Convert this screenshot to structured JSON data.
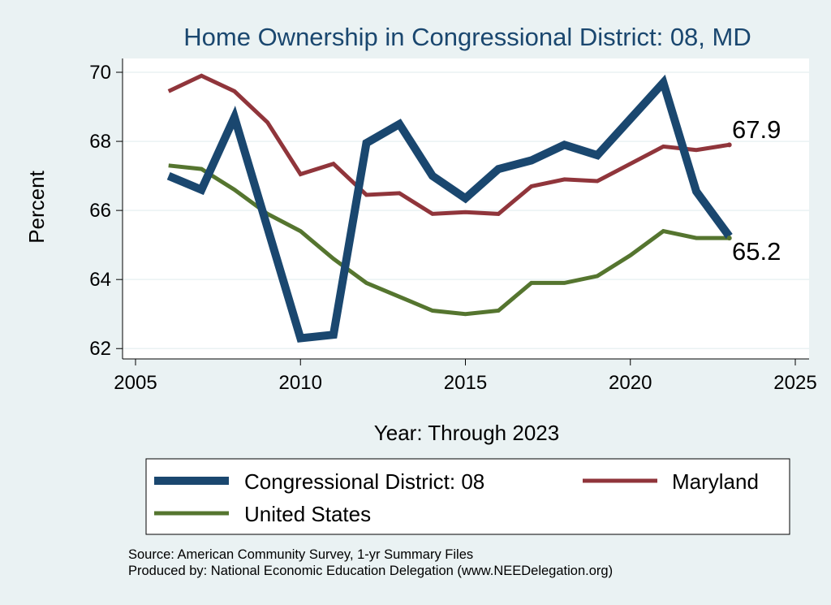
{
  "chart_data": {
    "type": "line",
    "title": "Home Ownership in Congressional District:  08, MD",
    "xlabel": "Year: Through 2023",
    "ylabel": "Percent",
    "xlim": [
      2005,
      2025
    ],
    "ylim": [
      61.7,
      70.4
    ],
    "xticks": [
      2005,
      2010,
      2015,
      2020,
      2025
    ],
    "yticks": [
      62,
      64,
      66,
      68,
      70
    ],
    "grid": true,
    "legend_position": "bottom",
    "series": [
      {
        "name": "Congressional District:  08",
        "color": "#1a476f",
        "x": [
          2006,
          2007,
          2008,
          2009,
          2010,
          2011,
          2012,
          2013,
          2014,
          2015,
          2016,
          2017,
          2018,
          2019,
          2020,
          2021,
          2022,
          2023
        ],
        "values": [
          67.0,
          66.6,
          68.7,
          65.5,
          62.3,
          62.4,
          67.95,
          68.5,
          67.0,
          66.35,
          67.2,
          67.45,
          67.9,
          67.6,
          68.65,
          69.7,
          66.55,
          65.25
        ]
      },
      {
        "name": "Maryland",
        "color": "#90353b",
        "x": [
          2006,
          2007,
          2008,
          2009,
          2010,
          2011,
          2012,
          2013,
          2014,
          2015,
          2016,
          2017,
          2018,
          2019,
          2020,
          2021,
          2022,
          2023
        ],
        "values": [
          69.45,
          69.9,
          69.45,
          68.55,
          67.05,
          67.35,
          66.45,
          66.5,
          65.9,
          65.95,
          65.9,
          66.7,
          66.9,
          66.85,
          67.35,
          67.85,
          67.75,
          67.9
        ]
      },
      {
        "name": "United States",
        "color": "#55752f",
        "x": [
          2006,
          2007,
          2008,
          2009,
          2010,
          2011,
          2012,
          2013,
          2014,
          2015,
          2016,
          2017,
          2018,
          2019,
          2020,
          2021,
          2022,
          2023
        ],
        "values": [
          67.3,
          67.2,
          66.6,
          65.9,
          65.4,
          64.6,
          63.9,
          63.5,
          63.1,
          63.0,
          63.1,
          63.9,
          63.9,
          64.1,
          64.7,
          65.4,
          65.2,
          65.2
        ]
      }
    ],
    "annotations": [
      {
        "text": "67.9",
        "series": "Maryland"
      },
      {
        "text": "65.2",
        "series": "United States"
      }
    ],
    "legend": [
      "Congressional District:  08",
      "Maryland",
      "United States"
    ]
  },
  "source_note": {
    "line1": "Source: American Community Survey, 1-yr Summary Files",
    "line2": "Produced by: National Economic Education Delegation (www.NEEDelegation.org)"
  }
}
